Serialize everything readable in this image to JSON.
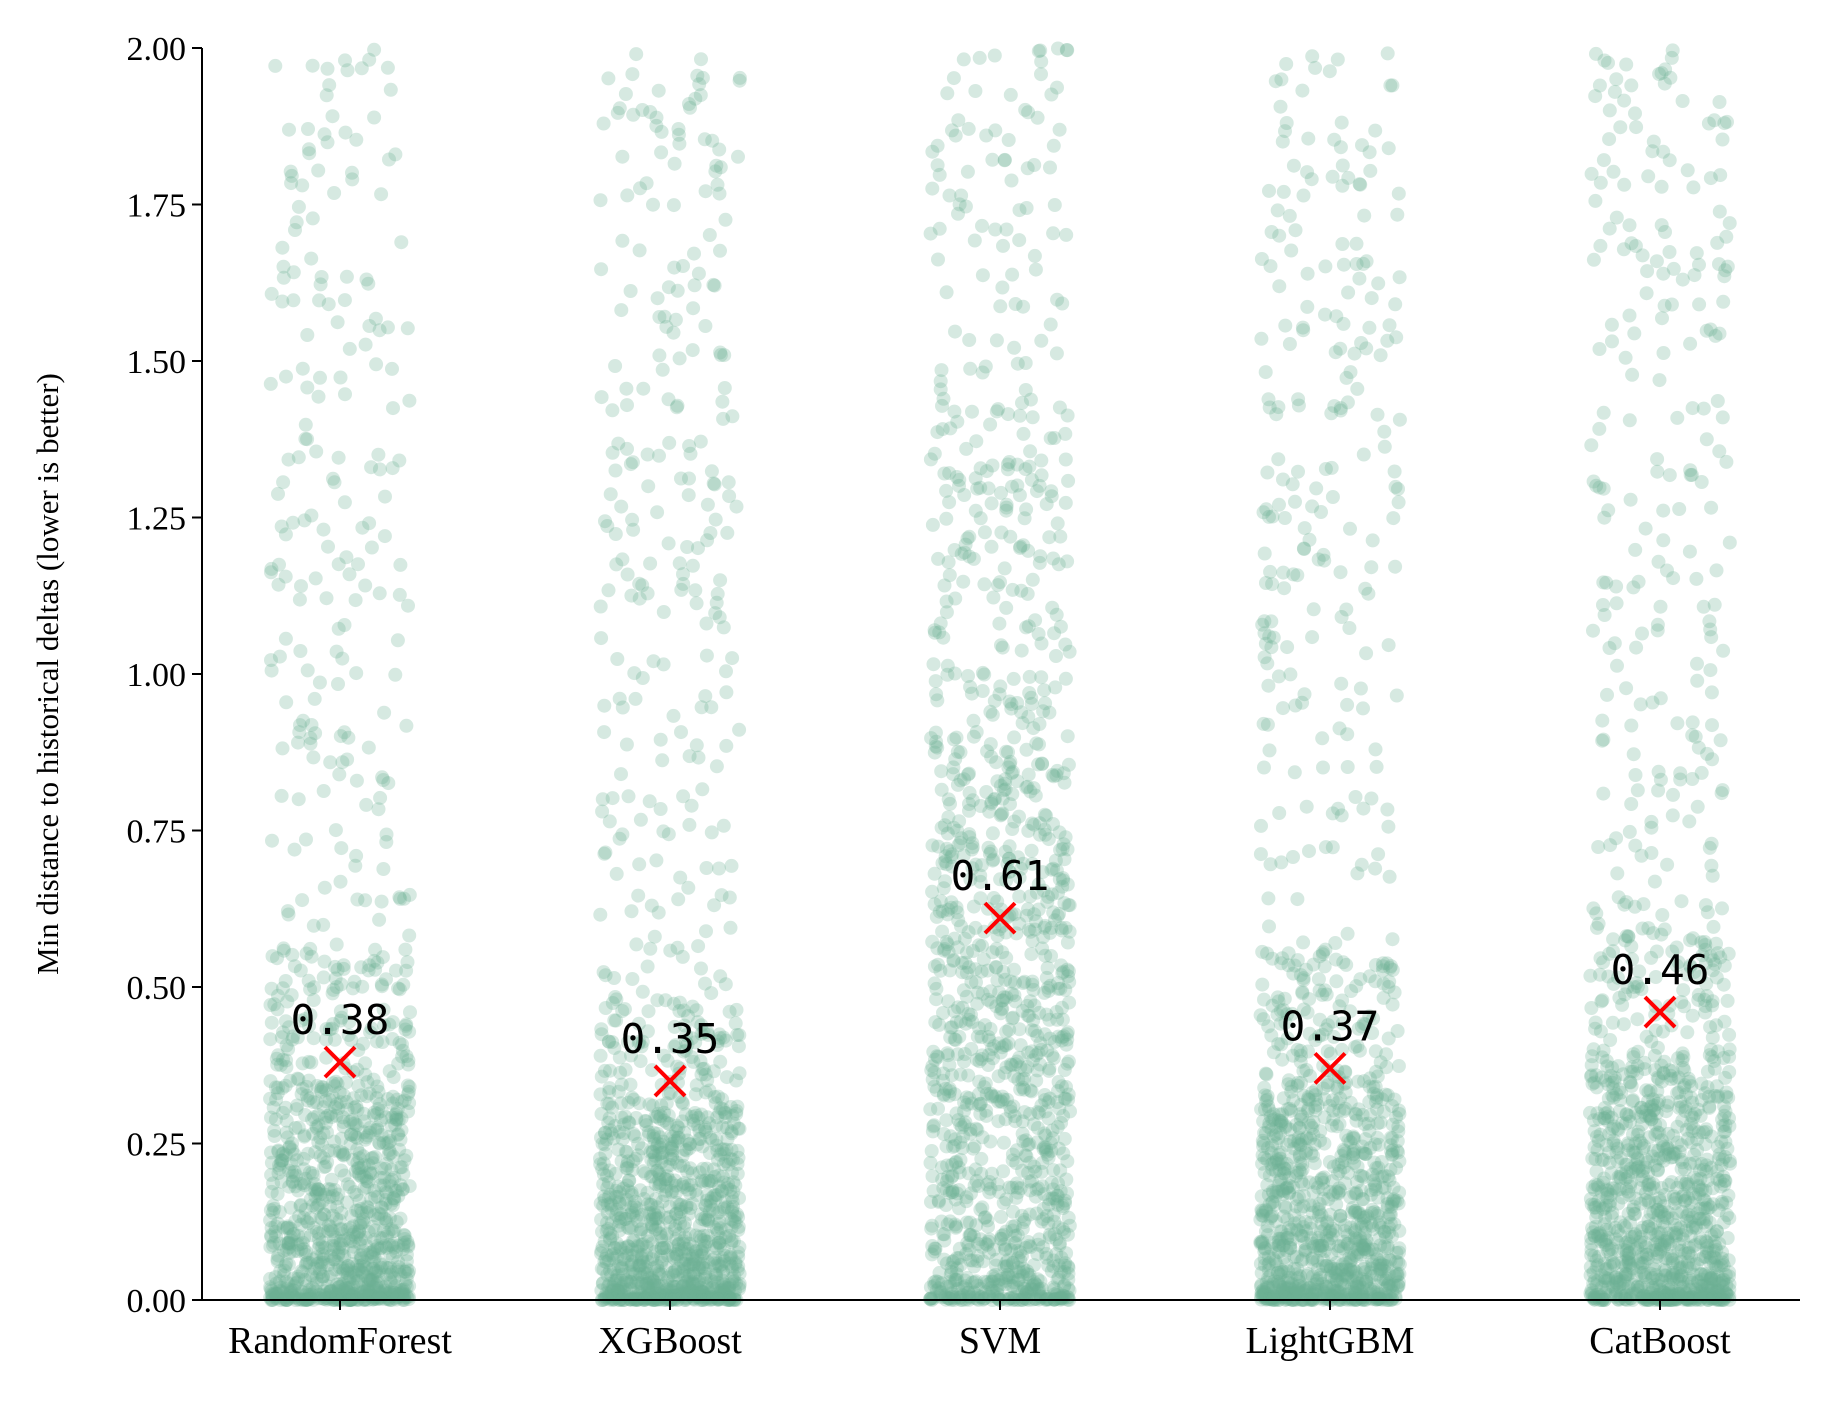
{
  "chart_data": {
    "type": "scatter",
    "subtype": "strip",
    "title": "",
    "xlabel": "",
    "ylabel": "Min distance to historical deltas (lower is better)",
    "ylim": [
      0,
      2.0
    ],
    "yticks": [
      "0.00",
      "0.25",
      "0.50",
      "0.75",
      "1.00",
      "1.25",
      "1.50",
      "1.75",
      "2.00"
    ],
    "grid": false,
    "categories": [
      "RandomForest",
      "XGBoost",
      "SVM",
      "LightGBM",
      "CatBoost"
    ],
    "series": [
      {
        "category": "RandomForest",
        "marker_value": 0.38,
        "marker_label": "0.38",
        "point_count": 1200,
        "dense_below": 0.35
      },
      {
        "category": "XGBoost",
        "marker_value": 0.35,
        "marker_label": "0.35",
        "point_count": 1300,
        "dense_below": 0.3
      },
      {
        "category": "SVM",
        "marker_value": 0.61,
        "marker_label": "0.61",
        "point_count": 1300,
        "dense_below": 0.9
      },
      {
        "category": "LightGBM",
        "marker_value": 0.37,
        "marker_label": "0.37",
        "point_count": 1250,
        "dense_below": 0.35
      },
      {
        "category": "CatBoost",
        "marker_value": 0.46,
        "marker_label": "0.46",
        "point_count": 1300,
        "dense_below": 0.4
      }
    ],
    "point_color": "#6aaf93",
    "marker_color": "#ff0000",
    "marker_shape": "x"
  }
}
